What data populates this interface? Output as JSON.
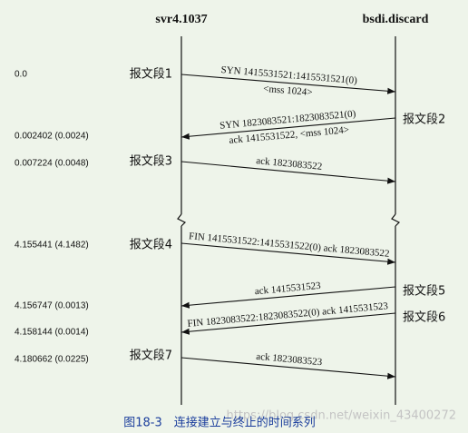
{
  "hosts": [
    "svr4.1037",
    "bsdi.discard"
  ],
  "messages": [
    {
      "time": "0.0",
      "segment": "报文段1",
      "lines": [
        "SYN 1415531521:1415531521(0)",
        "<mss 1024>"
      ]
    },
    {
      "time": "0.002402 (0.0024)",
      "segment": "报文段2",
      "lines": [
        "SYN 1823083521:1823083521(0)",
        "ack 1415531522, <mss 1024>"
      ]
    },
    {
      "time": "0.007224 (0.0048)",
      "segment": "报文段3",
      "lines": [
        "ack 1823083522"
      ]
    },
    {
      "time": "4.155441 (4.1482)",
      "segment": "报文段4",
      "lines": [
        "FIN 1415531522:1415531522(0) ack 1823083522"
      ]
    },
    {
      "time": "4.156747 (0.0013)",
      "segment": "报文段5",
      "lines": [
        "ack 1415531523"
      ]
    },
    {
      "time": "4.158144 (0.0014)",
      "segment": "报文段6",
      "lines": [
        "FIN 1823083522:1823083522(0) ack 1415531523"
      ]
    },
    {
      "time": "4.180662 (0.0225)",
      "segment": "报文段7",
      "lines": [
        "ack 1823083523"
      ]
    }
  ],
  "caption": "图18-3　连接建立与终止的时间系列",
  "watermark": "https://blog.csdn.net/weixin_43400272"
}
